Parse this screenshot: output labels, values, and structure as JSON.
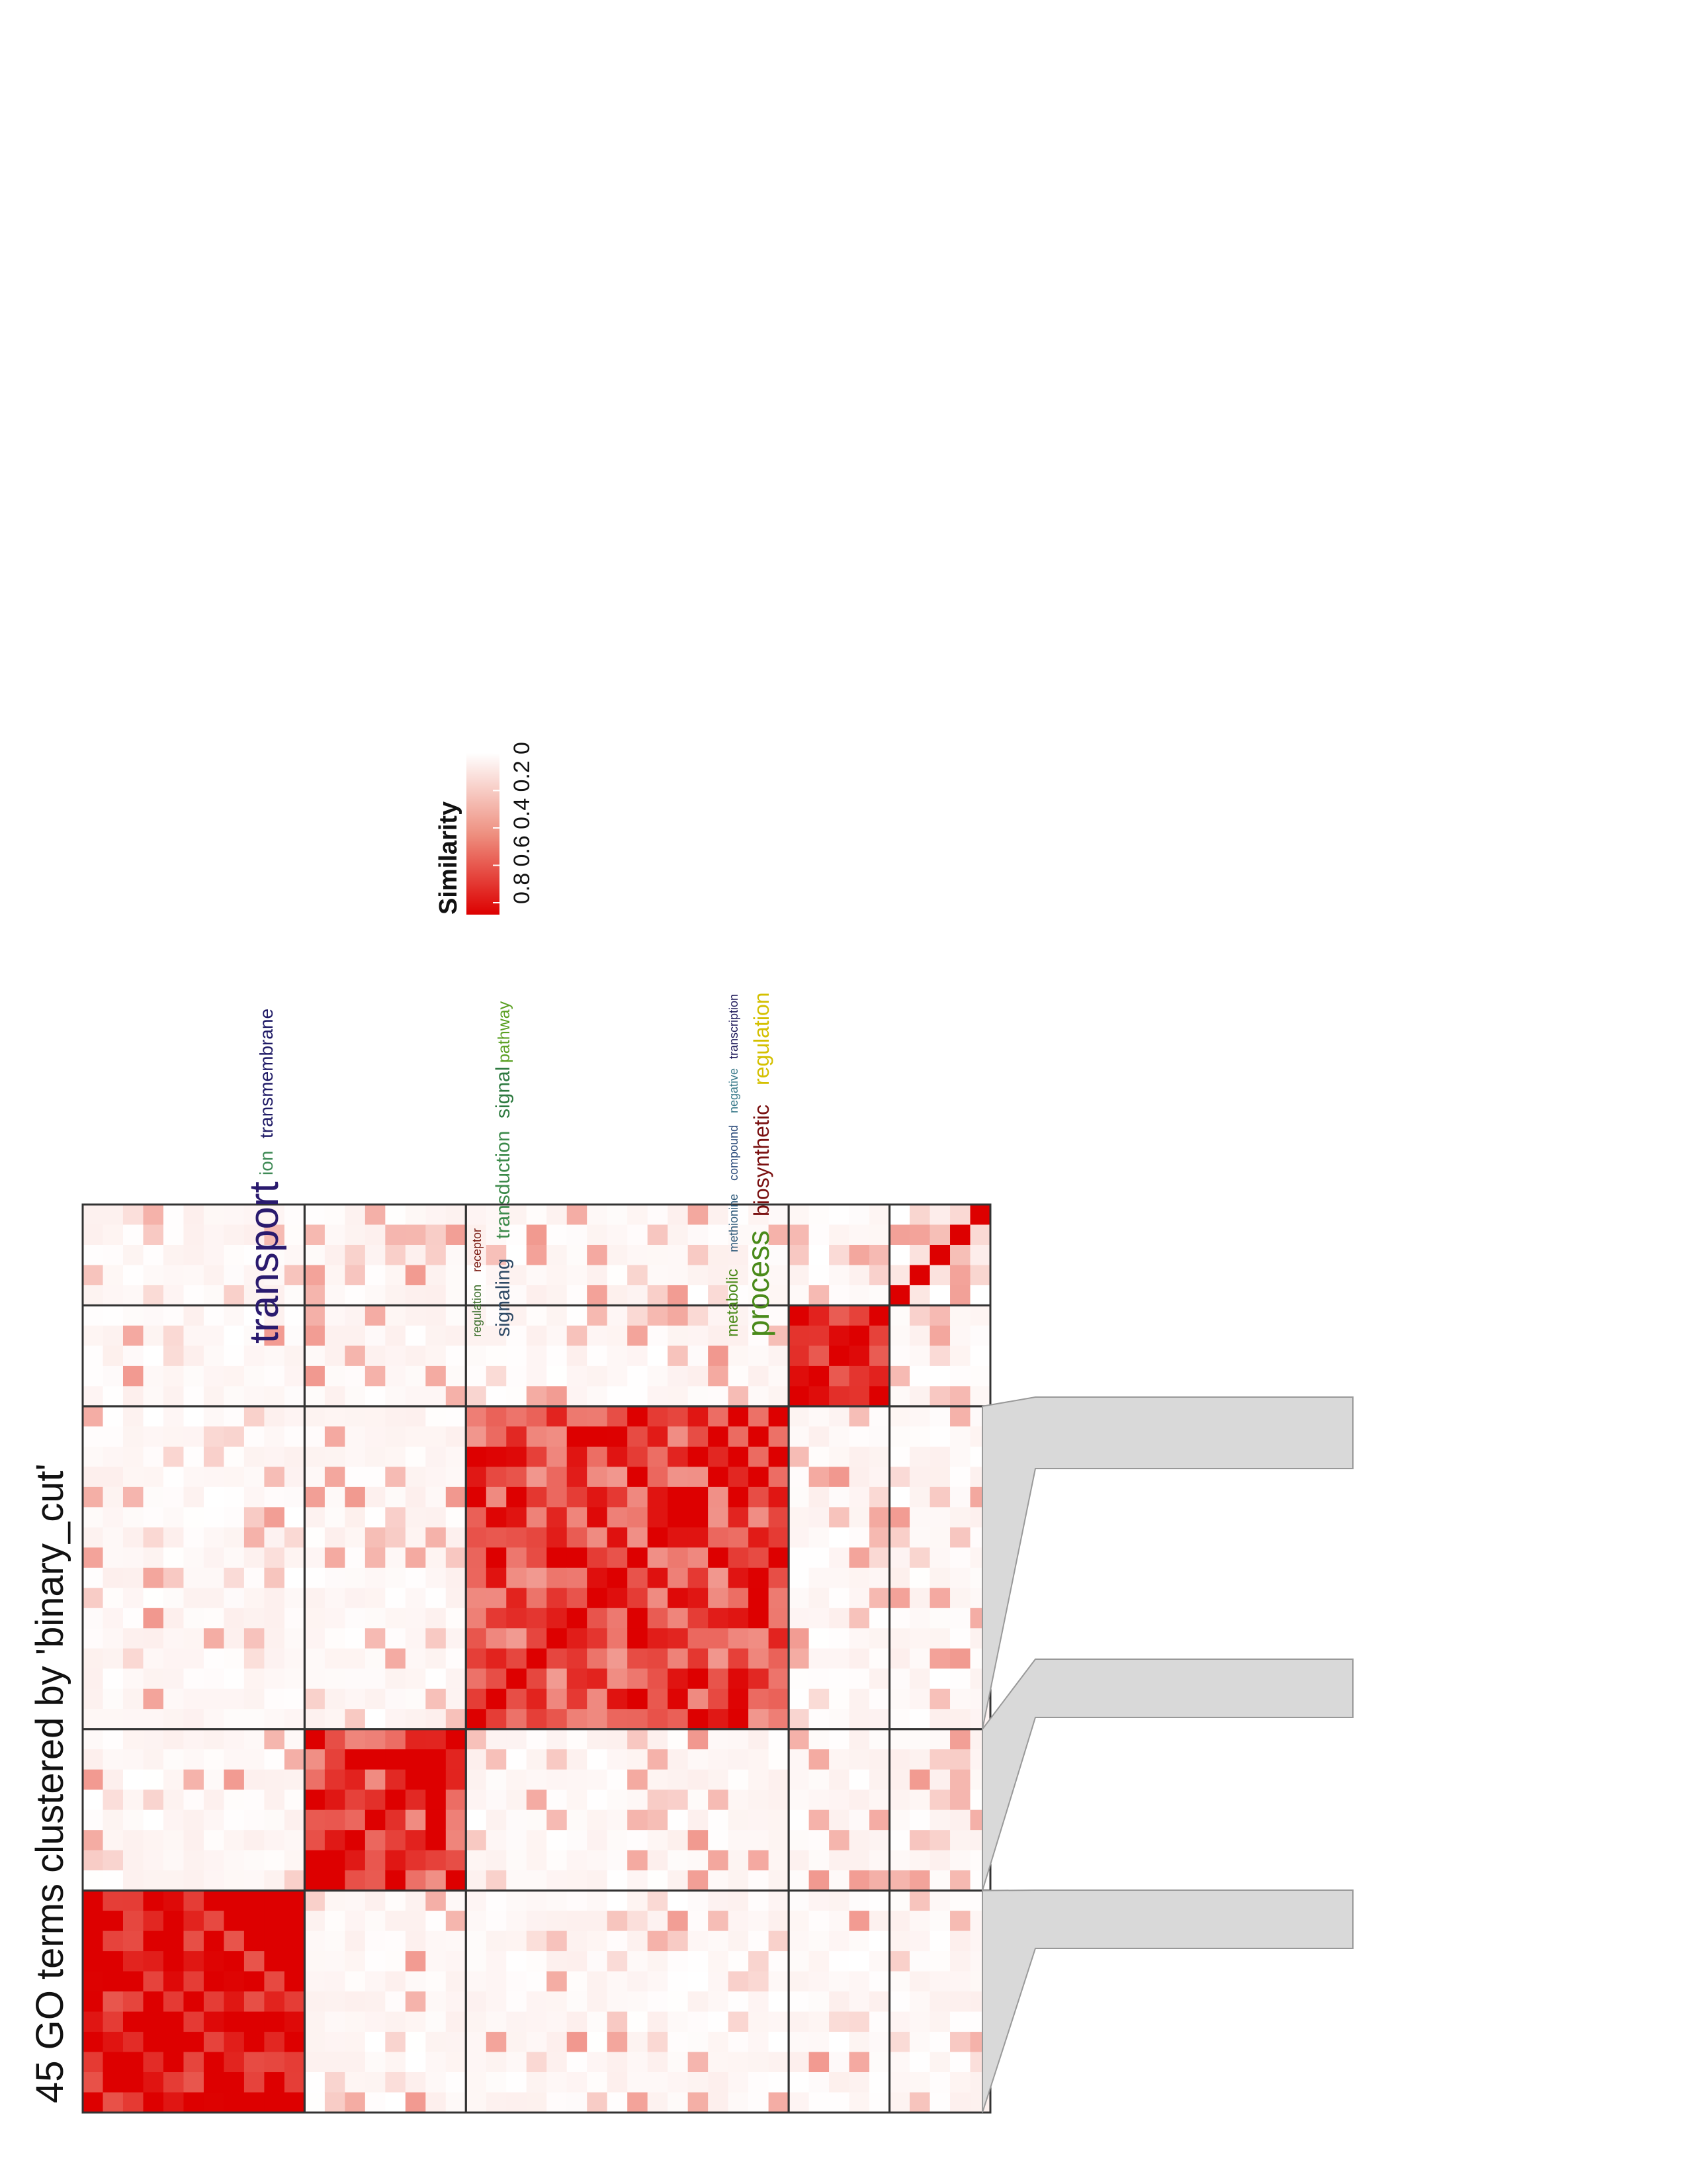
{
  "chart_data": {
    "type": "heatmap",
    "title": "45 GO terms clustered by 'binary_cut'",
    "n_terms": 45,
    "clusters": [
      {
        "size": 11,
        "block_similarity": 0.76
      },
      {
        "size": 8,
        "block_similarity": 0.62
      },
      {
        "size": 16,
        "block_similarity": 0.58
      },
      {
        "size": 5,
        "block_similarity": 0.7
      },
      {
        "size": 5,
        "block_similarity": 0.05
      }
    ],
    "legend": {
      "title": "Similarity",
      "ticks": [
        "0.8",
        "0.6",
        "0.4",
        "0.2",
        "0"
      ],
      "range": [
        0,
        0.8
      ]
    },
    "colors": {
      "high": "#dd0000",
      "mid": "#ee9080",
      "low": "#fdf4f1",
      "zero": "#ffffff",
      "border": "#333333",
      "wordcloud_box": "#d9d9d9"
    },
    "wordclouds": [
      {
        "cluster": 1,
        "words": [
          {
            "text": "transport",
            "color": "#2a1a6e",
            "weight": 3
          },
          {
            "text": "ion",
            "color": "#3f8a56",
            "weight": 1.2
          },
          {
            "text": "transmembrane",
            "color": "#1f1a66",
            "weight": 1.2
          }
        ]
      },
      {
        "cluster": 2,
        "words": [
          {
            "text": "regulation",
            "color": "#3a6e2a",
            "weight": 0.7
          },
          {
            "text": "receptor",
            "color": "#7a1b12",
            "weight": 0.7
          },
          {
            "text": "signaling",
            "color": "#2f4a66",
            "weight": 1.5
          },
          {
            "text": "transduction",
            "color": "#3c8a4a",
            "weight": 1.5
          },
          {
            "text": "signal",
            "color": "#2e7a40",
            "weight": 1.5
          },
          {
            "text": "pathway",
            "color": "#5aa022",
            "weight": 1.2
          }
        ]
      },
      {
        "cluster": 3,
        "words": [
          {
            "text": "metabolic",
            "color": "#4a8a1a",
            "weight": 1.1
          },
          {
            "text": "methionine",
            "color": "#2f5a7a",
            "weight": 0.8
          },
          {
            "text": "compound",
            "color": "#2a4a7a",
            "weight": 0.8
          },
          {
            "text": "negative",
            "color": "#3a7a8a",
            "weight": 0.8
          },
          {
            "text": "transcription",
            "color": "#1f1a5a",
            "weight": 0.8
          },
          {
            "text": "process",
            "color": "#4a8a1a",
            "weight": 2.2
          },
          {
            "text": "biosynthetic",
            "color": "#7a1010",
            "weight": 1.5
          },
          {
            "text": "regulation",
            "color": "#d4c000",
            "weight": 1.5
          }
        ]
      }
    ]
  }
}
